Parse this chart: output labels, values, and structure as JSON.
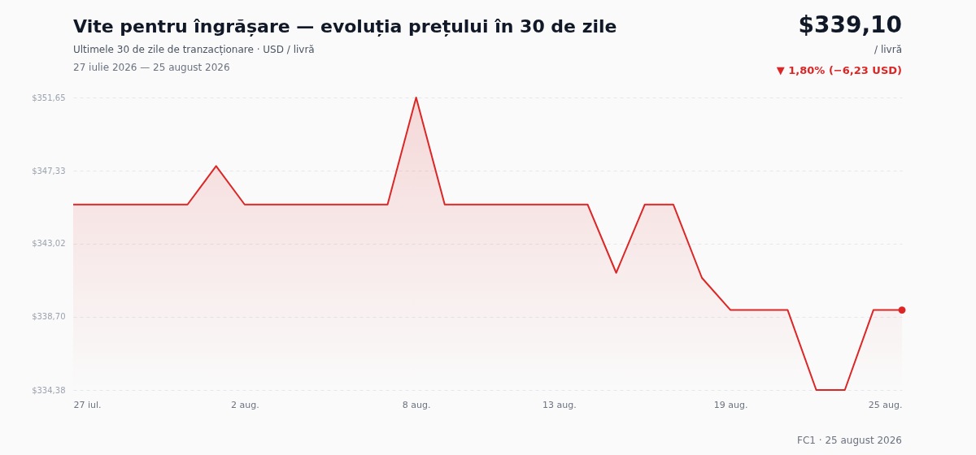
{
  "chart_data": {
    "type": "area",
    "title": "Vite pentru îngrășare — evoluția prețului în 30 de zile",
    "subtitle": "Ultimele 30 de zile de tranzacționare · USD / livră",
    "annotations": [
      "27 iulie 2026 — 25 august 2026",
      "$339,10",
      "/ livră",
      "▼ 1,80% (−6,23 USD)",
      "FC1 · 25 august 2026"
    ],
    "x": [
      "2026-07-27",
      "2026-07-28",
      "2026-07-29",
      "2026-07-30",
      "2026-07-31",
      "2026-08-01",
      "2026-08-02",
      "2026-08-03",
      "2026-08-04",
      "2026-08-05",
      "2026-08-06",
      "2026-08-07",
      "2026-08-08",
      "2026-08-09",
      "2026-08-10",
      "2026-08-11",
      "2026-08-12",
      "2026-08-13",
      "2026-08-14",
      "2026-08-15",
      "2026-08-16",
      "2026-08-17",
      "2026-08-18",
      "2026-08-19",
      "2026-08-20",
      "2026-08-21",
      "2026-08-22",
      "2026-08-23",
      "2026-08-24",
      "2026-08-25"
    ],
    "series": [
      {
        "color": "#dc2626",
        "marker": "none",
        "values": [
          345.33,
          345.33,
          345.33,
          345.33,
          345.33,
          347.6,
          345.33,
          345.33,
          345.33,
          345.33,
          345.33,
          345.33,
          351.65,
          345.33,
          345.33,
          345.33,
          345.33,
          345.33,
          345.33,
          341.3,
          345.33,
          345.33,
          341.0,
          339.1,
          339.1,
          339.1,
          334.38,
          334.38,
          339.1,
          339.1
        ]
      },
      {
        "type": "scatter",
        "color": "#dc2626",
        "marker": "circle",
        "x": [
          "2026-08-25"
        ],
        "values": [
          339.1
        ]
      }
    ],
    "xlim": [
      "2026-07-27",
      "2026-08-25"
    ],
    "xticks": [
      {
        "value": "2026-07-27",
        "label": "27 iul."
      },
      {
        "value": "2026-08-02",
        "label": "2 aug."
      },
      {
        "value": "2026-08-08",
        "label": "8 aug."
      },
      {
        "value": "2026-08-13",
        "label": "13 aug."
      },
      {
        "value": "2026-08-19",
        "label": "19 aug."
      },
      {
        "value": "2026-08-25",
        "label": "25 aug."
      }
    ],
    "ylim": [
      334.38,
      351.65
    ],
    "yticks": [
      {
        "value": 334.38,
        "label": "$334,38"
      },
      {
        "value": 338.7,
        "label": "$338,70"
      },
      {
        "value": 343.02,
        "label": "$343,02"
      },
      {
        "value": 347.33,
        "label": "$347,33"
      },
      {
        "value": 351.65,
        "label": "$351,65"
      }
    ],
    "grid": "y",
    "legend": false,
    "line_style": "solid"
  }
}
